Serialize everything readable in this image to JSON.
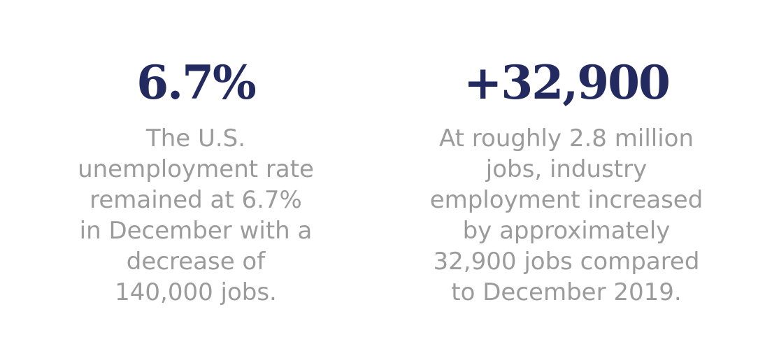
{
  "stats": [
    {
      "value": "6.7%",
      "description": "The U.S.\nunemployment rate\nremained at 6.7%\nin December with a\ndecrease of\n140,000 jobs."
    },
    {
      "value": "+32,900",
      "description": "At roughly 2.8 million\njobs, industry\nemployment increased\nby approximately\n32,900 jobs compared\nto December 2019."
    }
  ],
  "colors": {
    "value": "#232a60",
    "description": "#9b9b9b",
    "background": "#ffffff"
  }
}
